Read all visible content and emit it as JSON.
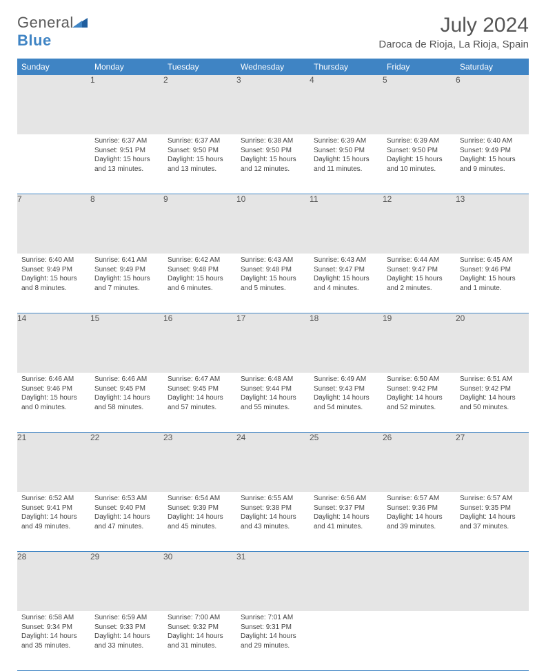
{
  "brand": {
    "part1": "General",
    "part2": "Blue"
  },
  "title": "July 2024",
  "location": "Daroca de Rioja, La Rioja, Spain",
  "colors": {
    "header_bg": "#3f84c4",
    "daynum_bg": "#e5e5e5",
    "border": "#3f84c4"
  },
  "weekdays": [
    "Sunday",
    "Monday",
    "Tuesday",
    "Wednesday",
    "Thursday",
    "Friday",
    "Saturday"
  ],
  "weeks": [
    [
      null,
      {
        "n": "1",
        "sr": "6:37 AM",
        "ss": "9:51 PM",
        "dl": "15 hours and 13 minutes."
      },
      {
        "n": "2",
        "sr": "6:37 AM",
        "ss": "9:50 PM",
        "dl": "15 hours and 13 minutes."
      },
      {
        "n": "3",
        "sr": "6:38 AM",
        "ss": "9:50 PM",
        "dl": "15 hours and 12 minutes."
      },
      {
        "n": "4",
        "sr": "6:39 AM",
        "ss": "9:50 PM",
        "dl": "15 hours and 11 minutes."
      },
      {
        "n": "5",
        "sr": "6:39 AM",
        "ss": "9:50 PM",
        "dl": "15 hours and 10 minutes."
      },
      {
        "n": "6",
        "sr": "6:40 AM",
        "ss": "9:49 PM",
        "dl": "15 hours and 9 minutes."
      }
    ],
    [
      {
        "n": "7",
        "sr": "6:40 AM",
        "ss": "9:49 PM",
        "dl": "15 hours and 8 minutes."
      },
      {
        "n": "8",
        "sr": "6:41 AM",
        "ss": "9:49 PM",
        "dl": "15 hours and 7 minutes."
      },
      {
        "n": "9",
        "sr": "6:42 AM",
        "ss": "9:48 PM",
        "dl": "15 hours and 6 minutes."
      },
      {
        "n": "10",
        "sr": "6:43 AM",
        "ss": "9:48 PM",
        "dl": "15 hours and 5 minutes."
      },
      {
        "n": "11",
        "sr": "6:43 AM",
        "ss": "9:47 PM",
        "dl": "15 hours and 4 minutes."
      },
      {
        "n": "12",
        "sr": "6:44 AM",
        "ss": "9:47 PM",
        "dl": "15 hours and 2 minutes."
      },
      {
        "n": "13",
        "sr": "6:45 AM",
        "ss": "9:46 PM",
        "dl": "15 hours and 1 minute."
      }
    ],
    [
      {
        "n": "14",
        "sr": "6:46 AM",
        "ss": "9:46 PM",
        "dl": "15 hours and 0 minutes."
      },
      {
        "n": "15",
        "sr": "6:46 AM",
        "ss": "9:45 PM",
        "dl": "14 hours and 58 minutes."
      },
      {
        "n": "16",
        "sr": "6:47 AM",
        "ss": "9:45 PM",
        "dl": "14 hours and 57 minutes."
      },
      {
        "n": "17",
        "sr": "6:48 AM",
        "ss": "9:44 PM",
        "dl": "14 hours and 55 minutes."
      },
      {
        "n": "18",
        "sr": "6:49 AM",
        "ss": "9:43 PM",
        "dl": "14 hours and 54 minutes."
      },
      {
        "n": "19",
        "sr": "6:50 AM",
        "ss": "9:42 PM",
        "dl": "14 hours and 52 minutes."
      },
      {
        "n": "20",
        "sr": "6:51 AM",
        "ss": "9:42 PM",
        "dl": "14 hours and 50 minutes."
      }
    ],
    [
      {
        "n": "21",
        "sr": "6:52 AM",
        "ss": "9:41 PM",
        "dl": "14 hours and 49 minutes."
      },
      {
        "n": "22",
        "sr": "6:53 AM",
        "ss": "9:40 PM",
        "dl": "14 hours and 47 minutes."
      },
      {
        "n": "23",
        "sr": "6:54 AM",
        "ss": "9:39 PM",
        "dl": "14 hours and 45 minutes."
      },
      {
        "n": "24",
        "sr": "6:55 AM",
        "ss": "9:38 PM",
        "dl": "14 hours and 43 minutes."
      },
      {
        "n": "25",
        "sr": "6:56 AM",
        "ss": "9:37 PM",
        "dl": "14 hours and 41 minutes."
      },
      {
        "n": "26",
        "sr": "6:57 AM",
        "ss": "9:36 PM",
        "dl": "14 hours and 39 minutes."
      },
      {
        "n": "27",
        "sr": "6:57 AM",
        "ss": "9:35 PM",
        "dl": "14 hours and 37 minutes."
      }
    ],
    [
      {
        "n": "28",
        "sr": "6:58 AM",
        "ss": "9:34 PM",
        "dl": "14 hours and 35 minutes."
      },
      {
        "n": "29",
        "sr": "6:59 AM",
        "ss": "9:33 PM",
        "dl": "14 hours and 33 minutes."
      },
      {
        "n": "30",
        "sr": "7:00 AM",
        "ss": "9:32 PM",
        "dl": "14 hours and 31 minutes."
      },
      {
        "n": "31",
        "sr": "7:01 AM",
        "ss": "9:31 PM",
        "dl": "14 hours and 29 minutes."
      },
      null,
      null,
      null
    ]
  ],
  "labels": {
    "sunrise": "Sunrise:",
    "sunset": "Sunset:",
    "daylight": "Daylight:"
  }
}
